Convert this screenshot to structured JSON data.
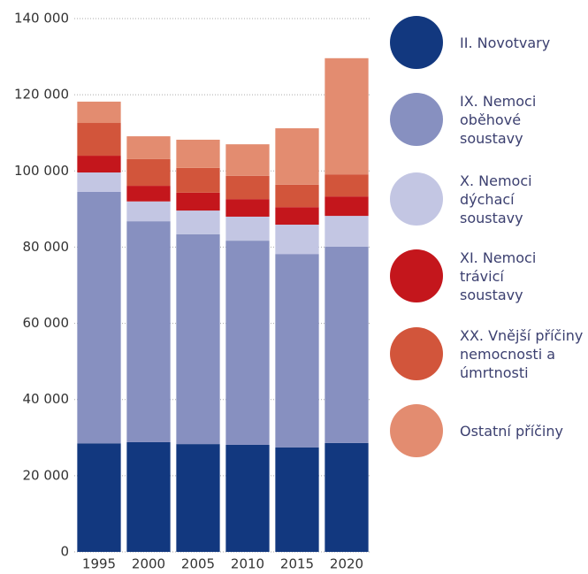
{
  "chart_data": {
    "type": "stacked_bar",
    "categories": [
      "1995",
      "2000",
      "2005",
      "2010",
      "2015",
      "2020"
    ],
    "series": [
      {
        "name": "II. Novotvary",
        "color": "#12387f",
        "values": [
          28500,
          28800,
          28300,
          28100,
          27400,
          28600
        ]
      },
      {
        "name": "IX. Nemoci oběhové soustavy",
        "color": "#8790c0",
        "values": [
          66000,
          58000,
          55100,
          53600,
          50800,
          51500
        ]
      },
      {
        "name": "X. Nemoci dýchací soustavy",
        "color": "#c3c6e3",
        "values": [
          5100,
          5200,
          6200,
          6300,
          7700,
          8100
        ]
      },
      {
        "name": "XI. Nemoci trávicí soustavy",
        "color": "#c4161c",
        "values": [
          4400,
          4100,
          4700,
          4600,
          4600,
          5100
        ]
      },
      {
        "name": "XX. Vnější příčiny nemocnosti a úmrtnosti",
        "color": "#d2553b",
        "values": [
          8600,
          7000,
          6500,
          6100,
          5900,
          5800
        ]
      },
      {
        "name": "Ostatní příčiny",
        "color": "#e38c70",
        "values": [
          5600,
          6000,
          7400,
          8300,
          14800,
          30500
        ]
      }
    ],
    "ylim": [
      0,
      140000
    ],
    "yticks": [
      0,
      {
        "value": 20000,
        "label": "20 000"
      },
      {
        "value": 40000,
        "label": "40 000"
      },
      {
        "value": 60000,
        "label": "60 000"
      },
      {
        "value": 80000,
        "label": "80 000"
      },
      {
        "value": 100000,
        "label": "100 000"
      },
      {
        "value": 120000,
        "label": "120 000"
      },
      {
        "value": 140000,
        "label": "140 000"
      }
    ],
    "grid": true
  }
}
